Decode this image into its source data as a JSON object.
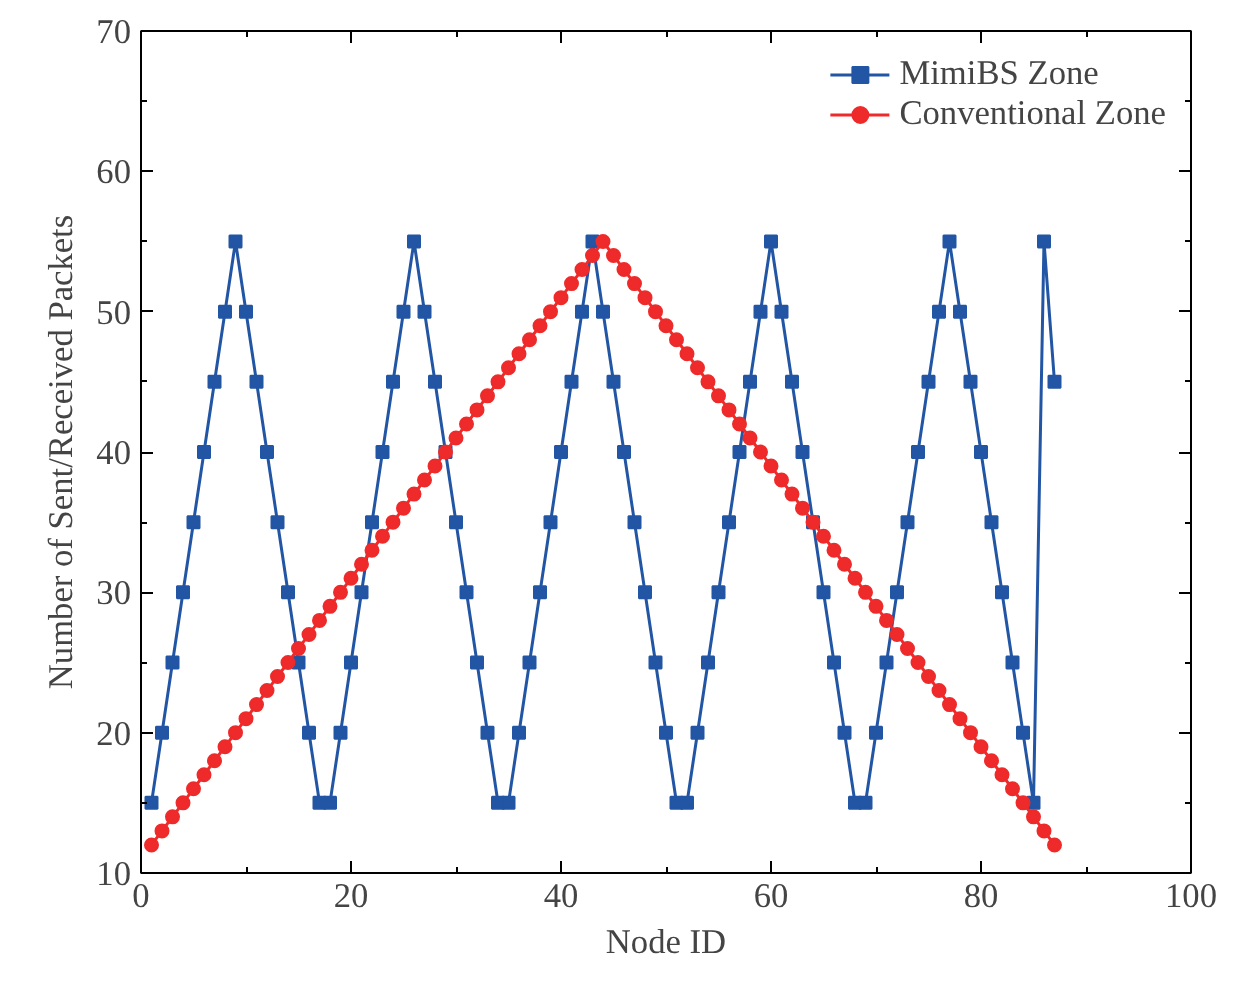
{
  "chart_data": {
    "type": "line",
    "xlabel": "Node ID",
    "ylabel": "Number of Sent/Received Packets",
    "x": [
      1,
      2,
      3,
      4,
      5,
      6,
      7,
      8,
      9,
      10,
      11,
      12,
      13,
      14,
      15,
      16,
      17,
      18,
      19,
      20,
      21,
      22,
      23,
      24,
      25,
      26,
      27,
      28,
      29,
      30,
      31,
      32,
      33,
      34,
      35,
      36,
      37,
      38,
      39,
      40,
      41,
      42,
      43,
      44,
      45,
      46,
      47,
      48,
      49,
      50,
      51,
      52,
      53,
      54,
      55,
      56,
      57,
      58,
      59,
      60,
      61,
      62,
      63,
      64,
      65,
      66,
      67,
      68,
      69,
      70,
      71,
      72,
      73,
      74,
      75,
      76,
      77,
      78,
      79,
      80,
      81,
      82,
      83,
      84,
      85,
      86,
      87
    ],
    "series": [
      {
        "name": "MimiBS Zone",
        "color": "#2255a4",
        "marker": "square",
        "values": [
          15,
          20,
          25,
          30,
          35,
          40,
          45,
          50,
          55,
          50,
          45,
          40,
          35,
          30,
          25,
          20,
          15,
          15,
          20,
          25,
          30,
          35,
          40,
          45,
          50,
          55,
          50,
          45,
          40,
          35,
          30,
          25,
          20,
          15,
          15,
          20,
          25,
          30,
          35,
          40,
          45,
          50,
          55,
          50,
          45,
          40,
          35,
          30,
          25,
          20,
          15,
          15,
          20,
          25,
          30,
          35,
          40,
          45,
          50,
          55,
          50,
          45,
          40,
          35,
          30,
          25,
          20,
          15,
          15,
          20,
          25,
          30,
          35,
          40,
          45,
          50,
          55,
          50,
          45,
          40,
          35,
          30,
          25,
          20,
          15,
          55,
          45
        ]
      },
      {
        "name": "Conventional Zone",
        "color": "#ee2a2a",
        "marker": "circle",
        "values": [
          12,
          13,
          14,
          15,
          16,
          17,
          18,
          19,
          20,
          21,
          22,
          23,
          24,
          25,
          26,
          27,
          28,
          29,
          30,
          31,
          32,
          33,
          34,
          35,
          36,
          37,
          38,
          39,
          40,
          41,
          42,
          43,
          44,
          45,
          46,
          47,
          48,
          49,
          50,
          51,
          52,
          53,
          54,
          55,
          54,
          53,
          52,
          51,
          50,
          49,
          48,
          47,
          46,
          45,
          44,
          43,
          42,
          41,
          40,
          39,
          38,
          37,
          36,
          35,
          34,
          33,
          32,
          31,
          30,
          29,
          28,
          27,
          26,
          25,
          24,
          23,
          22,
          21,
          20,
          19,
          18,
          17,
          16,
          15,
          14,
          13,
          12
        ]
      }
    ],
    "xlim": [
      0,
      100
    ],
    "xticks": [
      0,
      20,
      40,
      60,
      80,
      100
    ],
    "ylim": [
      10,
      70
    ],
    "yticks": [
      10,
      20,
      30,
      40,
      50,
      60,
      70
    ],
    "grid": false,
    "legend": "top right",
    "line_style": "solid"
  }
}
